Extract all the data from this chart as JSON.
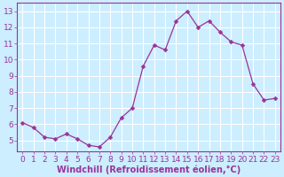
{
  "x": [
    0,
    1,
    2,
    3,
    4,
    5,
    6,
    7,
    8,
    9,
    10,
    11,
    12,
    13,
    14,
    15,
    16,
    17,
    18,
    19,
    20,
    21,
    22,
    23
  ],
  "y": [
    6.1,
    5.8,
    5.2,
    5.1,
    5.4,
    5.1,
    4.7,
    4.6,
    5.2,
    6.4,
    7.0,
    9.6,
    10.9,
    10.6,
    12.4,
    13.0,
    12.0,
    12.4,
    11.7,
    11.1,
    10.9,
    8.5,
    7.5,
    7.6
  ],
  "line_color": "#993399",
  "marker": "D",
  "markersize": 2.5,
  "linewidth": 0.9,
  "bg_color": "#cceeff",
  "grid_color": "#ffffff",
  "xlabel": "Windchill (Refroidissement éolien,°C)",
  "xlabel_fontsize": 7.0,
  "tick_fontsize": 6.5,
  "tick_color": "#993399",
  "xlabel_color": "#993399",
  "spine_color": "#993399",
  "xlim": [
    -0.5,
    23.5
  ],
  "ylim": [
    4.3,
    13.5
  ],
  "yticks": [
    5,
    6,
    7,
    8,
    9,
    10,
    11,
    12,
    13
  ],
  "xticks": [
    0,
    1,
    2,
    3,
    4,
    5,
    6,
    7,
    8,
    9,
    10,
    11,
    12,
    13,
    14,
    15,
    16,
    17,
    18,
    19,
    20,
    21,
    22,
    23
  ]
}
